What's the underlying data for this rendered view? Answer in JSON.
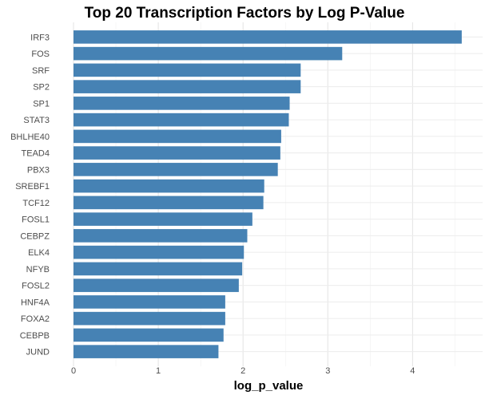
{
  "chart_data": {
    "type": "bar",
    "orientation": "horizontal",
    "title": "Top 20 Transcription Factors by Log P-Value",
    "xlabel": "log_p_value",
    "ylabel": "",
    "xlim": [
      0,
      4.6
    ],
    "x_ticks": [
      0,
      1,
      2,
      3,
      4
    ],
    "grid": true,
    "bar_color": "#4682B4",
    "categories": [
      "IRF3",
      "FOS",
      "SRF",
      "SP2",
      "SP1",
      "STAT3",
      "BHLHE40",
      "TEAD4",
      "PBX3",
      "SREBF1",
      "TCF12",
      "FOSL1",
      "CEBPZ",
      "ELK4",
      "NFYB",
      "FOSL2",
      "HNF4A",
      "FOXA2",
      "CEBPB",
      "JUND"
    ],
    "values": [
      4.58,
      3.17,
      2.68,
      2.68,
      2.55,
      2.54,
      2.45,
      2.44,
      2.41,
      2.25,
      2.24,
      2.11,
      2.05,
      2.01,
      1.99,
      1.95,
      1.79,
      1.79,
      1.77,
      1.71
    ]
  }
}
